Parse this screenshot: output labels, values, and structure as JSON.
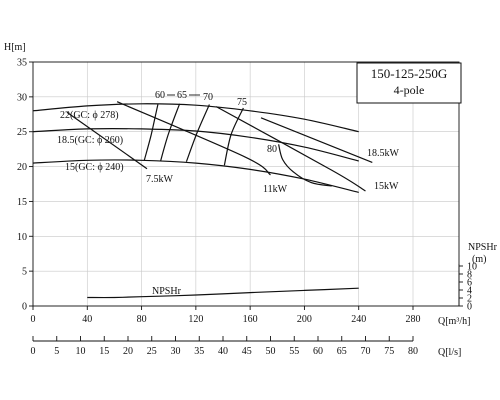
{
  "chart_data": {
    "type": "line",
    "title": "150-125-250G",
    "subtitle": "4-pole",
    "ylabel": "H[m]",
    "xlabel": "Q[m³/h]",
    "x2label": "Q[l/s]",
    "y2label": "NPSHr",
    "y2unit": "(m)",
    "xlim": [
      0,
      280
    ],
    "ylim": [
      0,
      35
    ],
    "x2lim": [
      0,
      80
    ],
    "y2lim": [
      0,
      10
    ],
    "grid": true,
    "x_ticks": [
      "0",
      "40",
      "80",
      "120",
      "160",
      "200",
      "240",
      "280"
    ],
    "y_ticks": [
      "0",
      "5",
      "10",
      "15",
      "20",
      "25",
      "30",
      "35"
    ],
    "x2_ticks": [
      "0",
      "5",
      "10",
      "15",
      "20",
      "25",
      "30",
      "35",
      "40",
      "45",
      "50",
      "55",
      "60",
      "65",
      "70",
      "75",
      "80"
    ],
    "y2_ticks": [
      "0",
      "2",
      "4",
      "6",
      "8",
      "10"
    ],
    "head_curves": [
      {
        "name": "22(GC: ϕ 278)",
        "x": [
          0,
          40,
          80,
          120,
          160,
          200,
          240
        ],
        "y": [
          28.0,
          28.7,
          29.0,
          28.8,
          28.0,
          26.8,
          25.0
        ]
      },
      {
        "name": "18.5(GC: ϕ 260)",
        "x": [
          0,
          40,
          80,
          120,
          160,
          200,
          240
        ],
        "y": [
          25.0,
          25.4,
          25.4,
          25.1,
          24.2,
          22.8,
          20.8
        ]
      },
      {
        "name": "15(GC: ϕ 240)",
        "x": [
          0,
          40,
          80,
          120,
          160,
          200,
          240
        ],
        "y": [
          20.5,
          20.9,
          20.9,
          20.5,
          19.6,
          18.2,
          16.3
        ]
      }
    ],
    "efficiency_labels": [
      "60",
      "65",
      "70",
      "75",
      "80"
    ],
    "efficiency_curves": [
      {
        "label": "60",
        "x": [
          92,
          87,
          82
        ],
        "y": [
          28.9,
          24.5,
          20.9
        ]
      },
      {
        "label": "65",
        "x": [
          108,
          100,
          94
        ],
        "y": [
          29.0,
          24.8,
          20.8
        ]
      },
      {
        "label": "70",
        "x": [
          130,
          121,
          113
        ],
        "y": [
          28.9,
          24.9,
          20.7
        ]
      },
      {
        "label": "75",
        "x": [
          155,
          146,
          141
        ],
        "y": [
          28.4,
          24.6,
          20.2
        ]
      },
      {
        "label": "80",
        "x": [
          181,
          184,
          192,
          205,
          220
        ],
        "y": [
          23.2,
          21.0,
          19.2,
          17.7,
          17.2
        ]
      }
    ],
    "power_lines": [
      {
        "label": "7.5kW",
        "x": [
          25,
          84
        ],
        "y": [
          27.8,
          19.7
        ]
      },
      {
        "label": "11kW",
        "x": [
          62,
          156,
          175
        ],
        "y": [
          29.3,
          21.4,
          18.8
        ]
      },
      {
        "label": "15kW",
        "x": [
          135,
          220,
          245
        ],
        "y": [
          28.6,
          19.5,
          16.5
        ]
      },
      {
        "label": "18.5kW",
        "x": [
          168,
          250
        ],
        "y": [
          27.0,
          20.6
        ]
      }
    ],
    "npshr_curve": {
      "name": "NPSHr",
      "x": [
        40,
        60,
        80,
        120,
        160,
        200,
        240
      ],
      "y": [
        0.35,
        0.35,
        0.38,
        0.45,
        0.55,
        0.64,
        0.73
      ]
    }
  }
}
